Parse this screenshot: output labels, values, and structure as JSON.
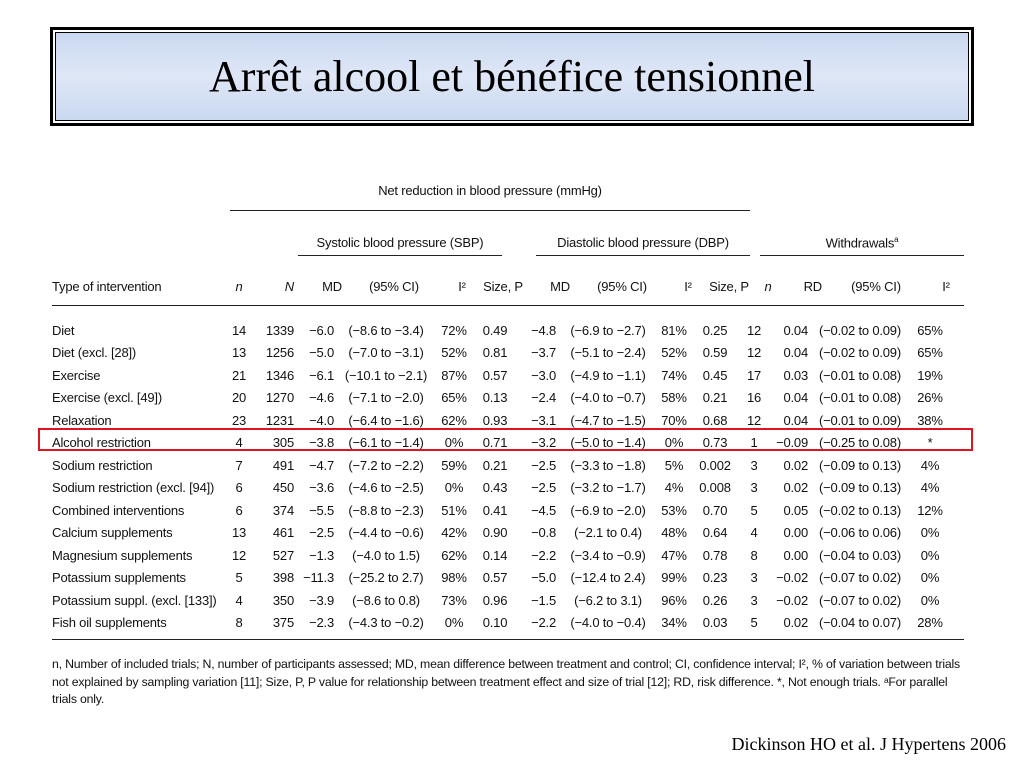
{
  "title": "Arrêt alcool et bénéfice tensionnel",
  "table": {
    "header_main": "Net reduction in blood pressure (mmHg)",
    "header_sbp": "Systolic blood pressure (SBP)",
    "header_dbp": "Diastolic blood pressure (DBP)",
    "header_withdrawals": "Withdrawals",
    "header_withdrawals_sup": "a",
    "columns": [
      "Type of intervention",
      "n",
      "N",
      "MD",
      "(95% CI)",
      "I²",
      "Size, P",
      "MD",
      "(95% CI)",
      "I²",
      "Size, P",
      "n",
      "RD",
      "(95% CI)",
      "I²"
    ],
    "rows": [
      [
        "Diet",
        "14",
        "1339",
        "−6.0",
        "(−8.6 to −3.4)",
        "72%",
        "0.49",
        "−4.8",
        "(−6.9 to −2.7)",
        "81%",
        "0.25",
        "12",
        "0.04",
        "(−0.02 to 0.09)",
        "65%"
      ],
      [
        "Diet (excl. [28])",
        "13",
        "1256",
        "−5.0",
        "(−7.0 to −3.1)",
        "52%",
        "0.81",
        "−3.7",
        "(−5.1 to −2.4)",
        "52%",
        "0.59",
        "12",
        "0.04",
        "(−0.02 to 0.09)",
        "65%"
      ],
      [
        "Exercise",
        "21",
        "1346",
        "−6.1",
        "(−10.1 to −2.1)",
        "87%",
        "0.57",
        "−3.0",
        "(−4.9 to −1.1)",
        "74%",
        "0.45",
        "17",
        "0.03",
        "(−0.01 to 0.08)",
        "19%"
      ],
      [
        "Exercise (excl. [49])",
        "20",
        "1270",
        "−4.6",
        "(−7.1 to −2.0)",
        "65%",
        "0.13",
        "−2.4",
        "(−4.0 to −0.7)",
        "58%",
        "0.21",
        "16",
        "0.04",
        "(−0.01 to 0.08)",
        "26%"
      ],
      [
        "Relaxation",
        "23",
        "1231",
        "−4.0",
        "(−6.4 to −1.6)",
        "62%",
        "0.93",
        "−3.1",
        "(−4.7 to −1.5)",
        "70%",
        "0.68",
        "12",
        "0.04",
        "(−0.01 to 0.09)",
        "38%"
      ],
      [
        "Alcohol restriction",
        "4",
        "305",
        "−3.8",
        "(−6.1 to −1.4)",
        "0%",
        "0.71",
        "−3.2",
        "(−5.0 to −1.4)",
        "0%",
        "0.73",
        "1",
        "−0.09",
        "(−0.25 to 0.08)",
        "*"
      ],
      [
        "Sodium restriction",
        "7",
        "491",
        "−4.7",
        "(−7.2 to −2.2)",
        "59%",
        "0.21",
        "−2.5",
        "(−3.3 to −1.8)",
        "5%",
        "0.002",
        "3",
        "0.02",
        "(−0.09 to 0.13)",
        "4%"
      ],
      [
        "Sodium restriction (excl. [94])",
        "6",
        "450",
        "−3.6",
        "(−4.6 to −2.5)",
        "0%",
        "0.43",
        "−2.5",
        "(−3.2 to −1.7)",
        "4%",
        "0.008",
        "3",
        "0.02",
        "(−0.09 to 0.13)",
        "4%"
      ],
      [
        "Combined interventions",
        "6",
        "374",
        "−5.5",
        "(−8.8 to −2.3)",
        "51%",
        "0.41",
        "−4.5",
        "(−6.9 to −2.0)",
        "53%",
        "0.70",
        "5",
        "0.05",
        "(−0.02 to 0.13)",
        "12%"
      ],
      [
        "Calcium supplements",
        "13",
        "461",
        "−2.5",
        "(−4.4 to −0.6)",
        "42%",
        "0.90",
        "−0.8",
        "(−2.1 to 0.4)",
        "48%",
        "0.64",
        "4",
        "0.00",
        "(−0.06 to 0.06)",
        "0%"
      ],
      [
        "Magnesium supplements",
        "12",
        "527",
        "−1.3",
        "(−4.0 to 1.5)",
        "62%",
        "0.14",
        "−2.2",
        "(−3.4 to −0.9)",
        "47%",
        "0.78",
        "8",
        "0.00",
        "(−0.04 to 0.03)",
        "0%"
      ],
      [
        "Potassium supplements",
        "5",
        "398",
        "−11.3",
        "(−25.2 to 2.7)",
        "98%",
        "0.57",
        "−5.0",
        "(−12.4 to 2.4)",
        "99%",
        "0.23",
        "3",
        "−0.02",
        "(−0.07 to 0.02)",
        "0%"
      ],
      [
        "Potassium suppl. (excl. [133])",
        "4",
        "350",
        "−3.9",
        "(−8.6 to 0.8)",
        "73%",
        "0.96",
        "−1.5",
        "(−6.2 to 3.1)",
        "96%",
        "0.26",
        "3",
        "−0.02",
        "(−0.07 to 0.02)",
        "0%"
      ],
      [
        "Fish oil supplements",
        "8",
        "375",
        "−2.3",
        "(−4.3 to −0.2)",
        "0%",
        "0.10",
        "−2.2",
        "(−4.0 to −0.4)",
        "34%",
        "0.03",
        "5",
        "0.02",
        "(−0.04 to 0.07)",
        "28%"
      ]
    ],
    "highlighted_row": "Alcohol restriction"
  },
  "footnote": "n, Number of included trials; N, number of participants assessed; MD, mean difference between treatment and control; CI, confidence interval; I², % of variation between trials not explained by sampling variation [11]; Size, P, P value for relationship between treatment effect and size of trial [12]; RD, risk difference. *, Not enough trials. ᵃFor parallel trials only.",
  "citation": "Dickinson HO et al. J Hypertens 2006",
  "colors": {
    "highlight": "#e0141e",
    "title_bg": "#d6e1f4"
  }
}
